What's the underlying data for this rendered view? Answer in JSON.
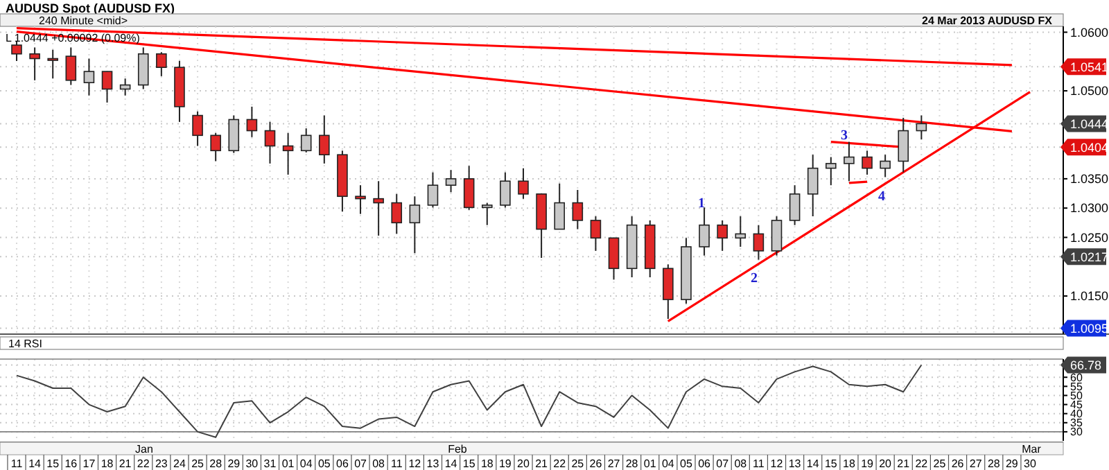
{
  "chart_data": [
    {
      "type": "candlestick",
      "title": "AUDUSD Spot (AUDUSD FX)",
      "subtitle": "240 Minute <mid>",
      "colors": [
        "#e02828",
        "#e02828",
        "#e02828",
        "#e02828",
        "#c8c8c8",
        "#e02828",
        "#c8c8c8",
        "#c8c8c8",
        "#e02828",
        "#e02828",
        "#e02828",
        "#e02828",
        "#c8c8c8",
        "#e02828",
        "#e02828",
        "#e02828",
        "#c8c8c8",
        "#e02828",
        "#e02828",
        "#e02828",
        "#e02828",
        "#e02828",
        "#c8c8c8",
        "#c8c8c8",
        "#c8c8c8",
        "#e02828",
        "#c8c8c8",
        "#c8c8c8",
        "#e02828",
        "#e02828",
        "#c8c8c8",
        "#e02828",
        "#e02828",
        "#e02828",
        "#c8c8c8",
        "#e02828",
        "#e02828",
        "#c8c8c8",
        "#c8c8c8",
        "#e02828",
        "#c8c8c8",
        "#e02828",
        "#c8c8c8",
        "#c8c8c8",
        "#c8c8c8",
        "#c8c8c8",
        "#c8c8c8",
        "#e02828",
        "#c8c8c8",
        "#c8c8c8",
        "#c8c8c8",
        null,
        null,
        null,
        null,
        null,
        null
      ],
      "categories": [
        "11",
        "14",
        "15",
        "16",
        "17",
        "18",
        "21",
        "22",
        "23",
        "24",
        "25",
        "28",
        "29",
        "30",
        "31",
        "01",
        "04",
        "05",
        "06",
        "07",
        "08",
        "11",
        "12",
        "13",
        "14",
        "15",
        "18",
        "19",
        "20",
        "21",
        "22",
        "25",
        "26",
        "27",
        "28",
        "01",
        "04",
        "05",
        "06",
        "07",
        "08",
        "11",
        "12",
        "13",
        "14",
        "15",
        "18",
        "19",
        "20",
        "21",
        "22",
        "25",
        "26",
        "27",
        "28",
        "29",
        "30"
      ],
      "ohlc": [
        [
          1.0578,
          1.0585,
          1.0551,
          1.0563
        ],
        [
          1.0563,
          1.0574,
          1.0518,
          1.0555
        ],
        [
          1.0555,
          1.057,
          1.0521,
          1.0552
        ],
        [
          1.0559,
          1.0574,
          1.051,
          1.0518
        ],
        [
          1.0514,
          1.0555,
          1.0492,
          1.0533
        ],
        [
          1.0533,
          1.0533,
          1.048,
          1.0503
        ],
        [
          1.0503,
          1.0521,
          1.0492,
          1.051
        ],
        [
          1.051,
          1.0574,
          1.0503,
          1.0563
        ],
        [
          1.0563,
          1.0566,
          1.0525,
          1.054
        ],
        [
          1.054,
          1.0551,
          1.0447,
          1.0473
        ],
        [
          1.0458,
          1.0465,
          1.0406,
          1.0424
        ],
        [
          1.0424,
          1.0428,
          1.038,
          1.0398
        ],
        [
          1.0398,
          1.0458,
          1.0394,
          1.0451
        ],
        [
          1.0451,
          1.0473,
          1.0421,
          1.0432
        ],
        [
          1.0432,
          1.0447,
          1.0376,
          1.0406
        ],
        [
          1.0406,
          1.0428,
          1.0357,
          1.0398
        ],
        [
          1.0398,
          1.0436,
          1.0395,
          1.0424
        ],
        [
          1.0424,
          1.0458,
          1.0376,
          1.0391
        ],
        [
          1.0391,
          1.0398,
          1.0294,
          1.032
        ],
        [
          1.032,
          1.0339,
          1.029,
          1.0316
        ],
        [
          1.0316,
          1.0346,
          1.0253,
          1.0309
        ],
        [
          1.0309,
          1.0324,
          1.0256,
          1.0275
        ],
        [
          1.0275,
          1.032,
          1.0223,
          1.0305
        ],
        [
          1.0305,
          1.0361,
          1.0301,
          1.0339
        ],
        [
          1.0339,
          1.0365,
          1.0327,
          1.035
        ],
        [
          1.035,
          1.0372,
          1.0297,
          1.0301
        ],
        [
          1.0301,
          1.0309,
          1.0271,
          1.0305
        ],
        [
          1.0305,
          1.0361,
          1.0301,
          1.0346
        ],
        [
          1.0346,
          1.0368,
          1.0316,
          1.0324
        ],
        [
          1.0324,
          1.0324,
          1.0215,
          1.0264
        ],
        [
          1.0264,
          1.0342,
          1.0264,
          1.0309
        ],
        [
          1.0309,
          1.0331,
          1.0264,
          1.0279
        ],
        [
          1.0279,
          1.0286,
          1.0227,
          1.0249
        ],
        [
          1.0249,
          1.0249,
          1.0178,
          1.0197
        ],
        [
          1.0197,
          1.0286,
          1.0182,
          1.0271
        ],
        [
          1.0271,
          1.0279,
          1.0182,
          1.0197
        ],
        [
          1.0197,
          1.0204,
          1.0111,
          1.0144
        ],
        [
          1.0144,
          1.0249,
          1.0137,
          1.0234
        ],
        [
          1.0234,
          1.0301,
          1.0219,
          1.0271
        ],
        [
          1.0271,
          1.0279,
          1.0227,
          1.0249
        ],
        [
          1.0249,
          1.0286,
          1.0234,
          1.0256
        ],
        [
          1.0256,
          1.0271,
          1.0212,
          1.0227
        ],
        [
          1.0227,
          1.0286,
          1.0219,
          1.0279
        ],
        [
          1.0279,
          1.0339,
          1.0271,
          1.0324
        ],
        [
          1.0324,
          1.0391,
          1.0286,
          1.0368
        ],
        [
          1.0368,
          1.0387,
          1.0339,
          1.0376
        ],
        [
          1.0376,
          1.0413,
          1.0346,
          1.0387
        ],
        [
          1.0387,
          1.0398,
          1.0357,
          1.0368
        ],
        [
          1.0368,
          1.0391,
          1.0353,
          1.038
        ],
        [
          1.038,
          1.0454,
          1.0361,
          1.0432
        ],
        [
          1.0432,
          1.0458,
          1.0417,
          1.0444
        ],
        null,
        null,
        null,
        null,
        null,
        null
      ],
      "series": [
        {
          "type": "line",
          "color": "#ff0000",
          "values": [
            1.0607,
            null,
            null,
            null,
            null,
            null,
            null,
            null,
            null,
            null,
            null,
            null,
            null,
            null,
            null,
            null,
            null,
            null,
            null,
            null,
            null,
            null,
            null,
            null,
            null,
            null,
            null,
            null,
            null,
            null,
            null,
            null,
            null,
            null,
            null,
            null,
            null,
            null,
            null,
            null,
            null,
            null,
            null,
            null,
            null,
            null,
            null,
            null,
            null,
            null,
            null,
            null,
            null,
            null,
            null,
            1.0544,
            null
          ]
        },
        {
          "type": "line",
          "color": "#ff0000",
          "values": [
            1.0601,
            null,
            null,
            null,
            null,
            null,
            null,
            null,
            null,
            null,
            null,
            null,
            null,
            null,
            null,
            null,
            null,
            null,
            null,
            null,
            null,
            null,
            null,
            null,
            null,
            null,
            null,
            null,
            null,
            null,
            null,
            null,
            null,
            null,
            null,
            null,
            null,
            null,
            null,
            null,
            null,
            null,
            null,
            null,
            null,
            null,
            null,
            null,
            null,
            null,
            null,
            null,
            null,
            null,
            null,
            1.0431,
            null
          ]
        },
        {
          "type": "line",
          "color": "#ff0000",
          "values": [
            null,
            null,
            null,
            null,
            null,
            null,
            null,
            null,
            null,
            null,
            null,
            null,
            null,
            null,
            null,
            null,
            null,
            null,
            null,
            null,
            null,
            null,
            null,
            null,
            null,
            null,
            null,
            null,
            null,
            null,
            null,
            null,
            null,
            null,
            null,
            null,
            1.0107,
            null,
            null,
            null,
            null,
            null,
            null,
            null,
            null,
            null,
            null,
            null,
            null,
            null,
            null,
            null,
            null,
            null,
            null,
            null,
            1.0498
          ]
        },
        {
          "type": "line",
          "color": "#ff0000",
          "values": [
            null,
            null,
            null,
            null,
            null,
            null,
            null,
            null,
            null,
            null,
            null,
            null,
            null,
            null,
            null,
            null,
            null,
            null,
            null,
            null,
            null,
            null,
            null,
            null,
            null,
            null,
            null,
            null,
            null,
            null,
            null,
            null,
            null,
            null,
            null,
            null,
            null,
            null,
            null,
            null,
            null,
            null,
            null,
            null,
            null,
            1.0413,
            null,
            null,
            null,
            1.0404,
            null,
            null,
            null,
            null,
            null,
            null,
            null
          ]
        },
        {
          "type": "line",
          "color": "#ff0000",
          "values": [
            null,
            null,
            null,
            null,
            null,
            null,
            null,
            null,
            null,
            null,
            null,
            null,
            null,
            null,
            null,
            null,
            null,
            null,
            null,
            null,
            null,
            null,
            null,
            null,
            null,
            null,
            null,
            null,
            null,
            null,
            null,
            null,
            null,
            null,
            null,
            null,
            null,
            null,
            null,
            null,
            null,
            null,
            null,
            null,
            null,
            null,
            1.0343,
            1.0345,
            null,
            null,
            null,
            null,
            null,
            null,
            null,
            null,
            null
          ]
        }
      ],
      "annotations": [
        "24 Mar 2013  AUDUSD FX",
        "L 1.0444 +0.00092 (0.09%)",
        "1",
        "2",
        "3",
        "4"
      ],
      "ylim": [
        1.0085,
        1.061
      ],
      "yticks": [
        {
          "value": 1.06,
          "label": "1.0600"
        },
        {
          "value": 1.0541,
          "label": "1.0541"
        },
        {
          "value": 1.05,
          "label": "1.0500"
        },
        {
          "value": 1.0444,
          "label": "1.0444"
        },
        {
          "value": 1.0404,
          "label": "1.0404"
        },
        {
          "value": 1.035,
          "label": "1.0350"
        },
        {
          "value": 1.03,
          "label": "1.0300"
        },
        {
          "value": 1.025,
          "label": "1.0250"
        },
        {
          "value": 1.0217,
          "label": "1.0217"
        },
        {
          "value": 1.015,
          "label": "1.0150"
        },
        {
          "value": 1.0095,
          "label": "1.0095"
        }
      ],
      "grid": true,
      "tick_labels": "y"
    },
    {
      "type": "line",
      "title": "14 RSI",
      "categories": [
        "11",
        "14",
        "15",
        "16",
        "17",
        "18",
        "21",
        "22",
        "23",
        "24",
        "25",
        "28",
        "29",
        "30",
        "31",
        "01",
        "04",
        "05",
        "06",
        "07",
        "08",
        "11",
        "12",
        "13",
        "14",
        "15",
        "18",
        "19",
        "20",
        "21",
        "22",
        "25",
        "26",
        "27",
        "28",
        "01",
        "04",
        "05",
        "06",
        "07",
        "08",
        "11",
        "12",
        "13",
        "14",
        "15",
        "18",
        "19",
        "20",
        "21",
        "22",
        "25",
        "26",
        "27",
        "28",
        "29",
        "30"
      ],
      "series": [
        {
          "color": "#404040",
          "values": [
            61,
            58,
            54,
            54,
            45,
            41,
            44,
            60,
            52,
            41,
            30,
            27,
            46,
            47,
            35,
            41,
            49,
            44,
            33,
            32,
            37,
            38,
            33,
            52,
            56,
            58,
            42,
            52,
            56,
            33,
            52,
            46,
            44,
            38,
            50,
            42,
            32,
            52,
            59,
            55,
            54,
            46,
            59,
            63,
            66,
            63,
            56,
            55,
            56,
            52,
            66.78,
            null,
            null,
            null,
            null,
            null,
            null
          ]
        }
      ],
      "ref_lines": [
        {
          "axis": "y",
          "value": 30,
          "color": "#808080"
        },
        {
          "axis": "y",
          "value": 70,
          "color": "#808080"
        }
      ],
      "annotations": [
        "Jan",
        "Feb",
        "Mar"
      ],
      "ylim": [
        25,
        70
      ],
      "yticks": [
        30,
        35,
        40,
        45,
        50,
        55,
        60,
        {
          "value": 66.78,
          "label": "66.78"
        }
      ],
      "grid": true
    }
  ]
}
